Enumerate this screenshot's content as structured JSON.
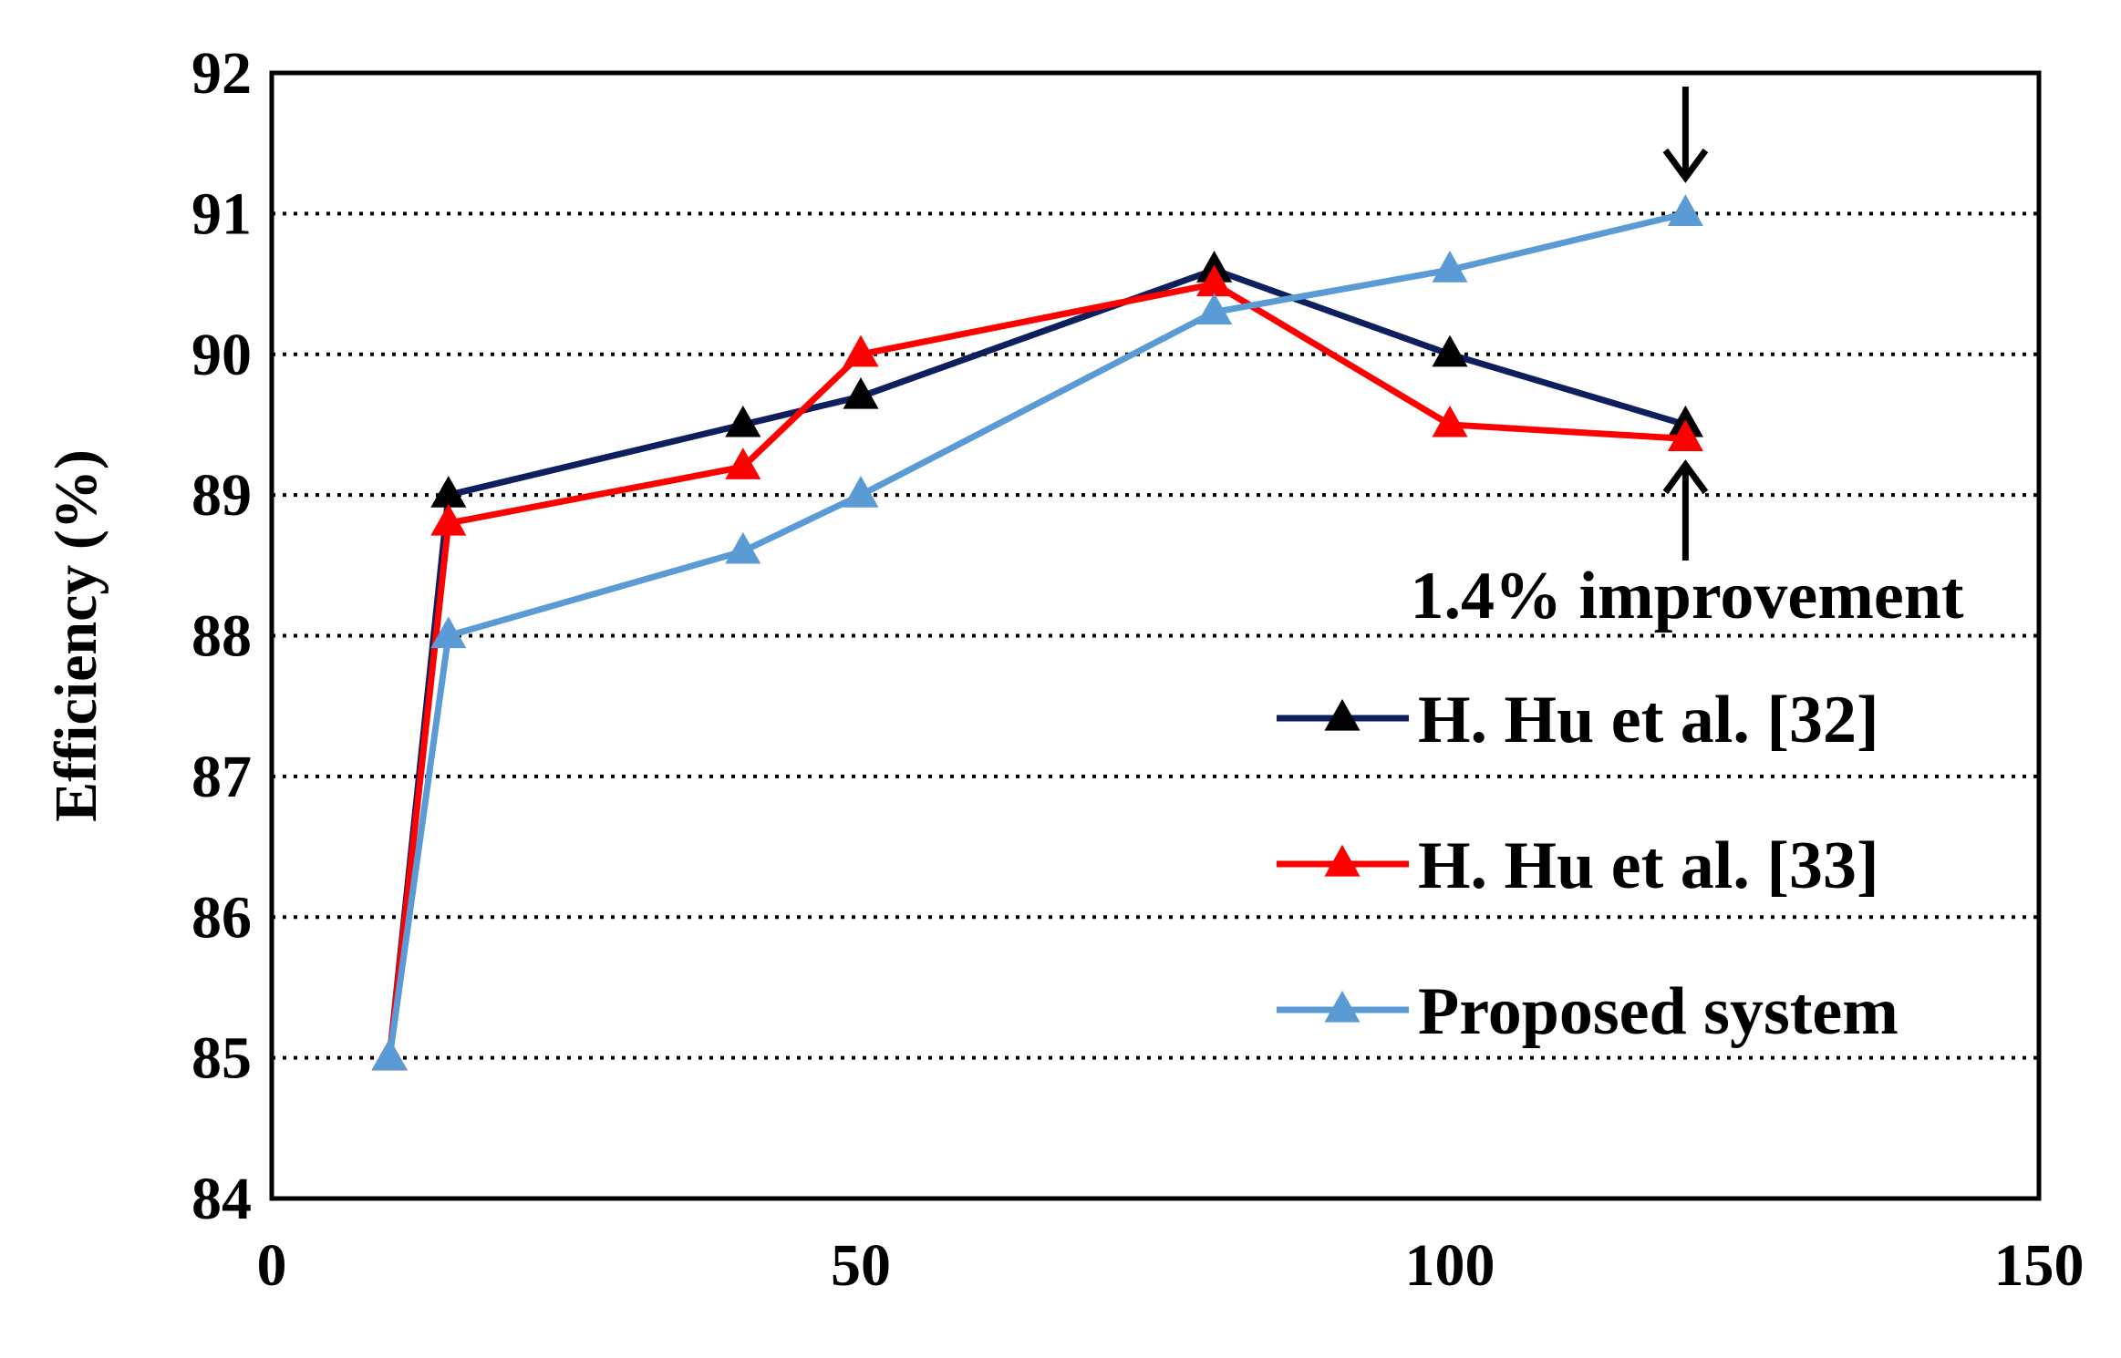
{
  "chart_data": {
    "type": "line",
    "title": "",
    "xlabel": "",
    "ylabel": "Efficiency (%)",
    "xlim": [
      0,
      150
    ],
    "ylim": [
      84,
      92
    ],
    "x_ticks": [
      0,
      50,
      100,
      150
    ],
    "y_ticks": [
      84,
      85,
      86,
      87,
      88,
      89,
      90,
      91,
      92
    ],
    "grid": "horizontal dotted",
    "legend_position": "bottom-right",
    "series": [
      {
        "name": "H. Hu et al. [32]",
        "color": "#0d1f5c",
        "marker_color": "#000000",
        "points": [
          [
            10,
            85
          ],
          [
            15,
            89
          ],
          [
            40,
            89.5
          ],
          [
            50,
            89.7
          ],
          [
            80,
            90.6
          ],
          [
            100,
            90
          ],
          [
            120,
            89.5
          ]
        ]
      },
      {
        "name": "H. Hu et al. [33]",
        "color": "#ff0000",
        "marker_color": "#ff0000",
        "points": [
          [
            10,
            85
          ],
          [
            15,
            88.8
          ],
          [
            40,
            89.2
          ],
          [
            50,
            90
          ],
          [
            80,
            90.5
          ],
          [
            100,
            89.5
          ],
          [
            120,
            89.4
          ]
        ]
      },
      {
        "name": "Proposed system",
        "color": "#5b9bd5",
        "marker_color": "#5b9bd5",
        "points": [
          [
            10,
            85
          ],
          [
            15,
            88
          ],
          [
            40,
            88.6
          ],
          [
            50,
            89
          ],
          [
            80,
            90.3
          ],
          [
            100,
            90.6
          ],
          [
            120,
            91
          ]
        ]
      }
    ],
    "annotations": [
      {
        "text": "1.4% improvement"
      }
    ]
  }
}
